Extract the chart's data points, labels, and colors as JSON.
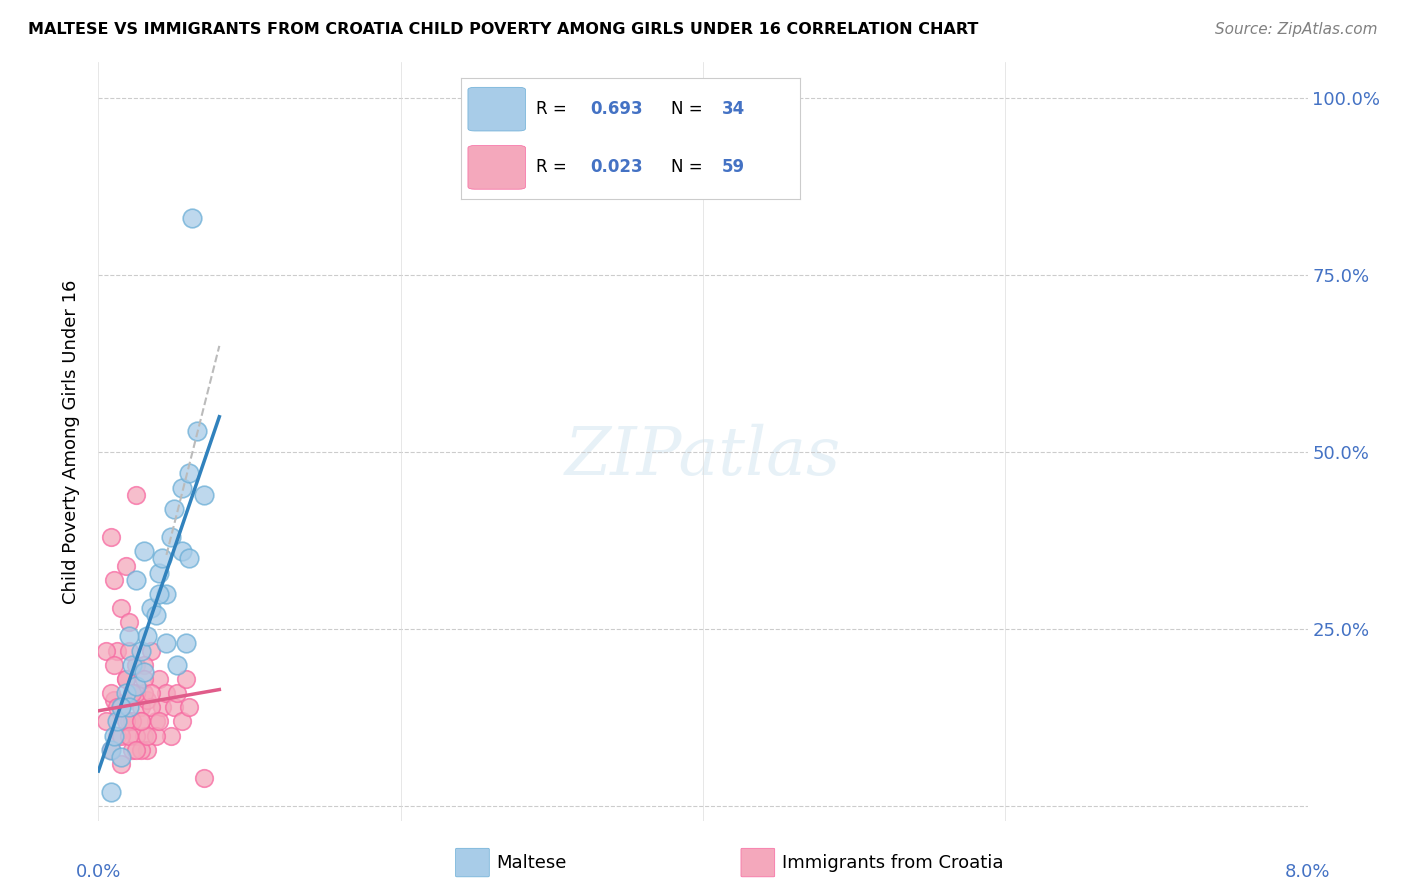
{
  "title": "MALTESE VS IMMIGRANTS FROM CROATIA CHILD POVERTY AMONG GIRLS UNDER 16 CORRELATION CHART",
  "source": "Source: ZipAtlas.com",
  "ylabel": "Child Poverty Among Girls Under 16",
  "legend_label_blue": "Maltese",
  "legend_label_pink": "Immigrants from Croatia",
  "blue_color": "#a8cce8",
  "pink_color": "#f4a8bc",
  "blue_edge_color": "#6baed6",
  "pink_edge_color": "#f768a1",
  "blue_line_color": "#3182bd",
  "pink_line_color": "#e05c8a",
  "dash_line_color": "#bbbbbb",
  "text_color_blue": "#4472c4",
  "blue_scatter_x": [
    0.0008,
    0.001,
    0.0012,
    0.0015,
    0.0018,
    0.002,
    0.0022,
    0.0025,
    0.0028,
    0.003,
    0.0032,
    0.0035,
    0.0038,
    0.004,
    0.0042,
    0.0045,
    0.0048,
    0.005,
    0.0052,
    0.0055,
    0.0058,
    0.006,
    0.0065,
    0.007,
    0.0055,
    0.003,
    0.004,
    0.0025,
    0.002,
    0.0045,
    0.006,
    0.0062,
    0.0008,
    0.0015
  ],
  "blue_scatter_y": [
    0.08,
    0.1,
    0.12,
    0.07,
    0.16,
    0.14,
    0.2,
    0.17,
    0.22,
    0.19,
    0.24,
    0.28,
    0.27,
    0.33,
    0.35,
    0.3,
    0.38,
    0.42,
    0.2,
    0.45,
    0.23,
    0.47,
    0.53,
    0.44,
    0.36,
    0.36,
    0.3,
    0.32,
    0.24,
    0.23,
    0.35,
    0.83,
    0.02,
    0.14
  ],
  "pink_scatter_x": [
    0.0005,
    0.0008,
    0.001,
    0.0012,
    0.0015,
    0.0018,
    0.002,
    0.0022,
    0.0025,
    0.0028,
    0.003,
    0.0032,
    0.0035,
    0.0038,
    0.004,
    0.0042,
    0.0045,
    0.0048,
    0.005,
    0.0052,
    0.0055,
    0.0058,
    0.006,
    0.0008,
    0.001,
    0.0012,
    0.0015,
    0.0018,
    0.002,
    0.0022,
    0.0025,
    0.0028,
    0.003,
    0.0032,
    0.0035,
    0.0038,
    0.004,
    0.0005,
    0.0008,
    0.001,
    0.0012,
    0.0015,
    0.0018,
    0.002,
    0.0022,
    0.0025,
    0.0028,
    0.003,
    0.0025,
    0.0032,
    0.0015,
    0.0018,
    0.002,
    0.0022,
    0.0025,
    0.0028,
    0.003,
    0.0035,
    0.007
  ],
  "pink_scatter_y": [
    0.12,
    0.08,
    0.15,
    0.1,
    0.06,
    0.18,
    0.12,
    0.16,
    0.2,
    0.14,
    0.1,
    0.15,
    0.22,
    0.12,
    0.18,
    0.14,
    0.16,
    0.1,
    0.14,
    0.16,
    0.12,
    0.18,
    0.14,
    0.38,
    0.32,
    0.22,
    0.28,
    0.34,
    0.26,
    0.08,
    0.1,
    0.12,
    0.16,
    0.08,
    0.14,
    0.1,
    0.12,
    0.22,
    0.16,
    0.2,
    0.14,
    0.1,
    0.18,
    0.22,
    0.12,
    0.16,
    0.08,
    0.2,
    0.44,
    0.1,
    0.14,
    0.12,
    0.1,
    0.16,
    0.08,
    0.12,
    0.18,
    0.16,
    0.04
  ],
  "blue_line_x0": 0.0,
  "blue_line_y0": 0.05,
  "blue_line_x1": 0.008,
  "blue_line_y1": 0.55,
  "pink_line_x0": 0.0,
  "pink_line_y0": 0.135,
  "pink_line_x1": 0.008,
  "pink_line_y1": 0.165,
  "dash_line_x0": 0.0045,
  "dash_line_y0": 0.355,
  "dash_line_x1": 0.008,
  "dash_line_y1": 0.65,
  "xmin": 0.0,
  "xmax": 0.08,
  "ymin": -0.02,
  "ymax": 1.05,
  "ytick_positions": [
    0.0,
    0.25,
    0.5,
    0.75,
    1.0
  ],
  "ytick_labels_right": [
    "",
    "25.0%",
    "50.0%",
    "75.0%",
    "100.0%"
  ],
  "xtick_positions": [
    0.0,
    0.02,
    0.04,
    0.06,
    0.08
  ],
  "watermark": "ZIPatlas",
  "legend_R_blue": "0.693",
  "legend_N_blue": "34",
  "legend_R_pink": "0.023",
  "legend_N_pink": "59"
}
